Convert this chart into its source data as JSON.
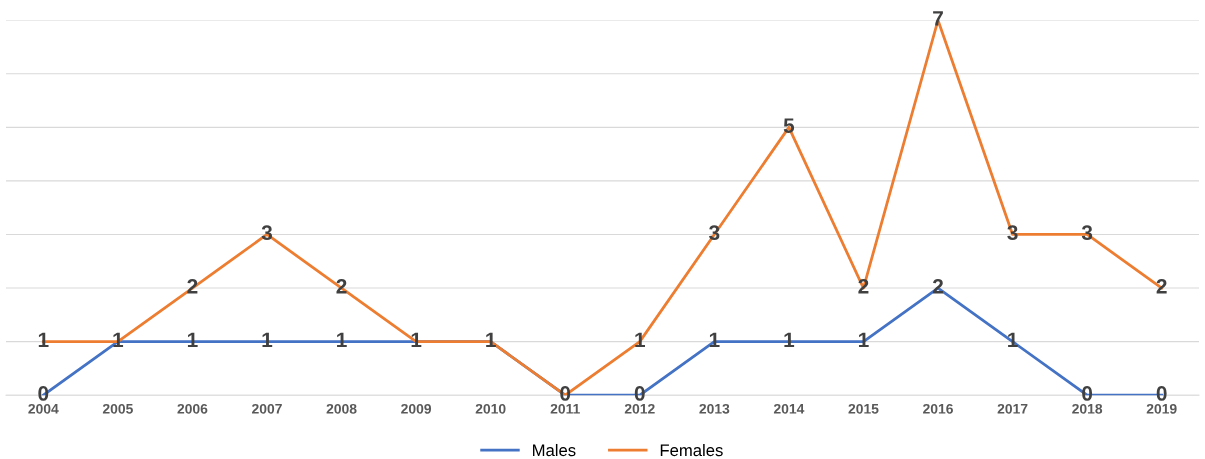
{
  "chart_data": {
    "type": "line",
    "categories": [
      "2004",
      "2005",
      "2006",
      "2007",
      "2008",
      "2009",
      "2010",
      "2011",
      "2012",
      "2013",
      "2014",
      "2015",
      "2016",
      "2017",
      "2018",
      "2019"
    ],
    "series": [
      {
        "name": "Males",
        "color": "#4472c4",
        "values": [
          0,
          1,
          1,
          1,
          1,
          1,
          1,
          0,
          0,
          1,
          1,
          1,
          2,
          1,
          0,
          0
        ],
        "value_labels": [
          "0",
          "1",
          "1",
          "1",
          "1",
          "1",
          "1",
          "0",
          "0",
          "1",
          "1",
          "1",
          "2",
          "1",
          "0",
          "0"
        ]
      },
      {
        "name": "Females",
        "color": "#ed7d31",
        "values": [
          1,
          1,
          2,
          3,
          2,
          1,
          1,
          0,
          1,
          3,
          5,
          2,
          7,
          3,
          3,
          2
        ],
        "value_labels": [
          "1",
          null,
          "2",
          "3",
          "2",
          null,
          null,
          null,
          "1",
          "3",
          "5",
          "2",
          "7",
          "3",
          "3",
          "2"
        ]
      }
    ],
    "ylim": [
      0,
      7
    ],
    "yticks": [
      {
        "value": 0,
        "label": null
      },
      {
        "value": 1,
        "label": null
      },
      {
        "value": 2,
        "label": null
      },
      {
        "value": 3,
        "label": null
      },
      {
        "value": 4,
        "label": null
      },
      {
        "value": 5,
        "label": null
      },
      {
        "value": 6,
        "label": null
      },
      {
        "value": 7,
        "label": null
      }
    ],
    "grid": "y",
    "tick_labels": "x",
    "legend": "bottom",
    "marker": "none",
    "line_style": "solid"
  }
}
